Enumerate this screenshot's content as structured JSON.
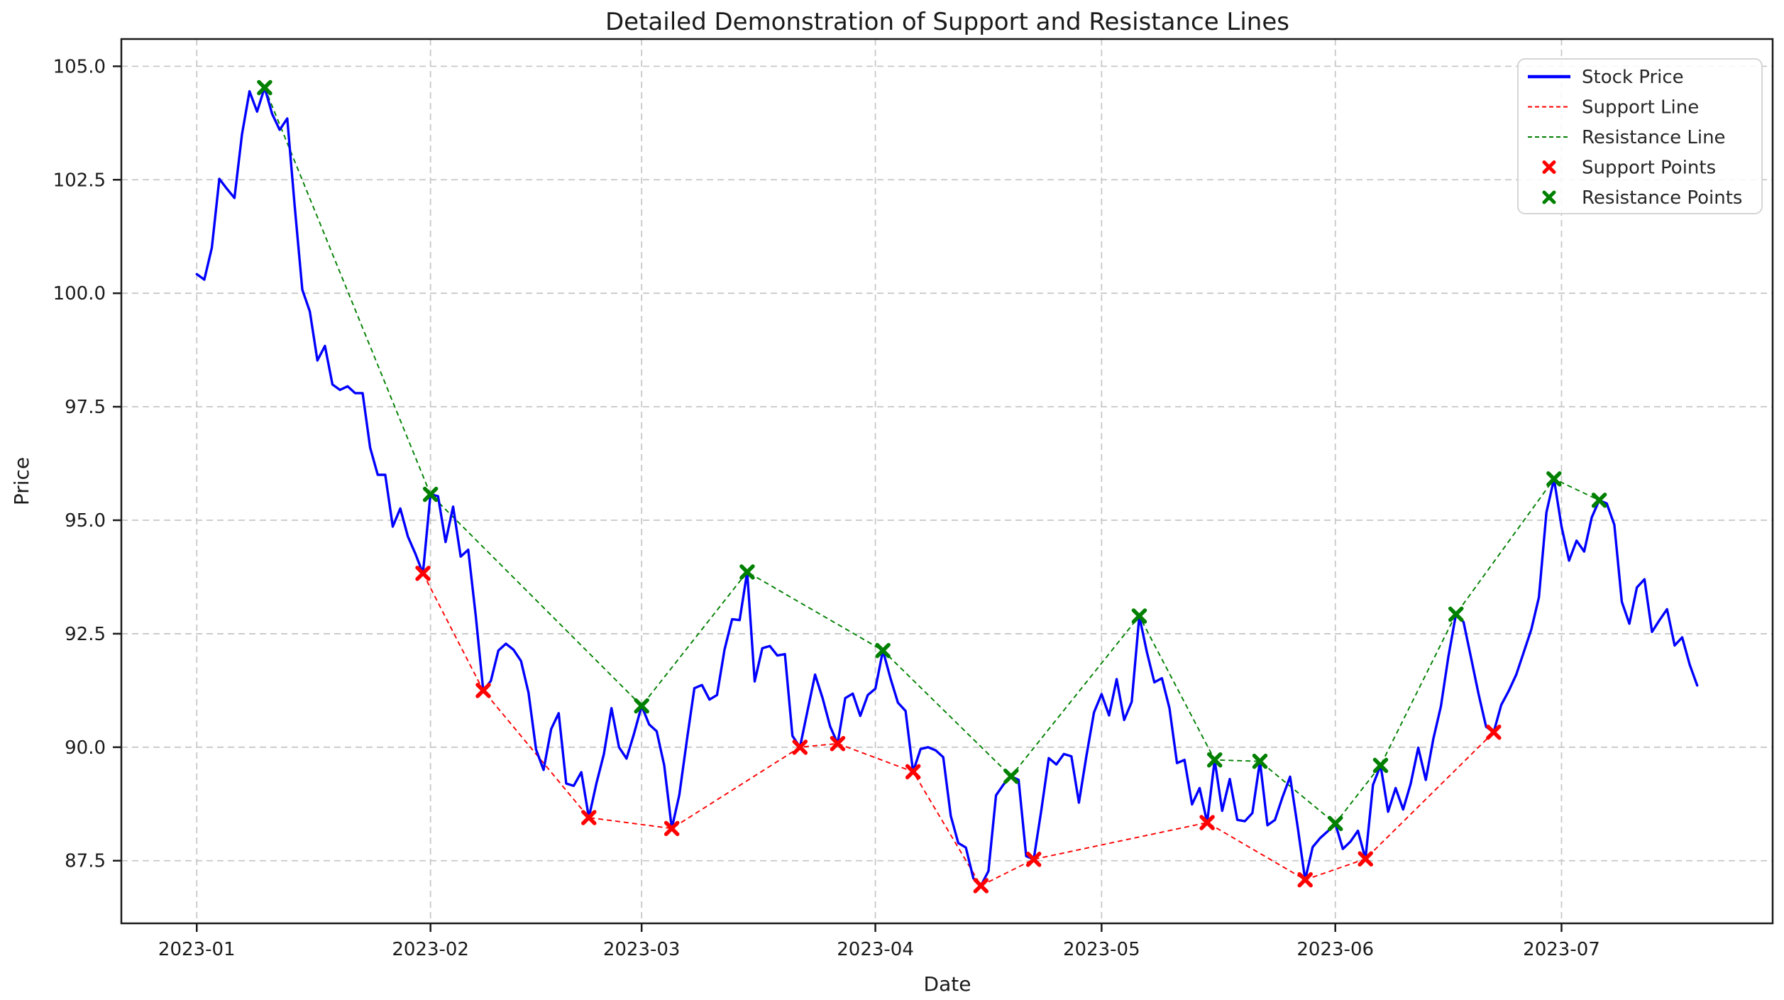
{
  "chart_data": {
    "type": "line",
    "title": "Detailed Demonstration of Support and Resistance Lines",
    "xlabel": "Date",
    "ylabel": "Price",
    "grid": true,
    "xlim": [
      "2022-12-22",
      "2023-07-29"
    ],
    "ylim": [
      86.12,
      105.6
    ],
    "xticks": [
      {
        "date": "2023-01-01",
        "label": "2023-01"
      },
      {
        "date": "2023-02-01",
        "label": "2023-02"
      },
      {
        "date": "2023-03-01",
        "label": "2023-03"
      },
      {
        "date": "2023-04-01",
        "label": "2023-04"
      },
      {
        "date": "2023-05-01",
        "label": "2023-05"
      },
      {
        "date": "2023-06-01",
        "label": "2023-06"
      },
      {
        "date": "2023-07-01",
        "label": "2023-07"
      }
    ],
    "yticks": [
      {
        "value": 87.5,
        "label": "87.5"
      },
      {
        "value": 90.0,
        "label": "90.0"
      },
      {
        "value": 92.5,
        "label": "92.5"
      },
      {
        "value": 95.0,
        "label": "95.0"
      },
      {
        "value": 97.5,
        "label": "97.5"
      },
      {
        "value": 100.0,
        "label": "100.0"
      },
      {
        "value": 102.5,
        "label": "102.5"
      },
      {
        "value": 105.0,
        "label": "105.0"
      }
    ],
    "colors": {
      "stock": "#0000ff",
      "support": "#ff0000",
      "resistance": "#008000",
      "grid": "#c8c8c8",
      "spine": "#1a1a1a",
      "legend_border": "#d5d5d5",
      "legend_bg": "#ffffff"
    },
    "stock_series": {
      "name": "Stock Price",
      "start_date": "2023-01-01",
      "values": [
        100.42,
        100.3,
        101.0,
        102.52,
        102.3,
        102.1,
        103.5,
        104.45,
        104.0,
        104.53,
        103.95,
        103.6,
        103.85,
        101.9,
        100.08,
        99.6,
        98.52,
        98.84,
        97.99,
        97.87,
        97.95,
        97.8,
        97.8,
        96.6,
        96.0,
        96.0,
        94.86,
        95.26,
        94.64,
        94.26,
        93.83,
        95.57,
        95.53,
        94.52,
        95.3,
        94.2,
        94.35,
        92.9,
        91.25,
        91.46,
        92.13,
        92.28,
        92.15,
        91.9,
        91.2,
        89.95,
        89.5,
        90.4,
        90.75,
        89.2,
        89.15,
        89.45,
        88.45,
        89.2,
        89.85,
        90.86,
        90.0,
        89.75,
        90.3,
        90.91,
        90.5,
        90.35,
        89.6,
        88.21,
        88.95,
        90.15,
        91.3,
        91.37,
        91.05,
        91.15,
        92.15,
        92.82,
        92.8,
        93.86,
        91.45,
        92.18,
        92.23,
        92.02,
        92.05,
        90.25,
        90.0,
        90.8,
        91.6,
        91.08,
        90.46,
        90.08,
        91.08,
        91.18,
        90.69,
        91.15,
        91.29,
        92.13,
        91.52,
        90.98,
        90.8,
        89.46,
        89.96,
        90.0,
        89.93,
        89.78,
        88.49,
        87.89,
        87.79,
        87.11,
        86.95,
        87.27,
        88.94,
        89.18,
        89.36,
        89.28,
        87.6,
        87.53,
        88.6,
        89.76,
        89.62,
        89.85,
        89.8,
        88.78,
        89.82,
        90.77,
        91.17,
        90.7,
        91.5,
        90.6,
        91.0,
        92.89,
        92.1,
        91.43,
        91.52,
        90.86,
        89.65,
        89.72,
        88.74,
        89.1,
        88.34,
        89.72,
        88.6,
        89.3,
        88.4,
        88.37,
        88.55,
        89.69,
        88.28,
        88.4,
        88.9,
        89.35,
        88.25,
        87.08,
        87.8,
        88.0,
        88.15,
        88.32,
        87.76,
        87.92,
        88.16,
        87.54,
        89.17,
        89.6,
        88.58,
        89.1,
        88.63,
        89.2,
        89.99,
        89.28,
        90.18,
        90.9,
        92.0,
        92.93,
        92.76,
        91.97,
        91.17,
        90.45,
        90.33,
        90.93,
        91.24,
        91.6,
        92.1,
        92.6,
        93.3,
        95.17,
        95.91,
        94.86,
        94.11,
        94.55,
        94.31,
        95.06,
        95.44,
        95.37,
        94.9,
        93.2,
        92.72,
        93.52,
        93.7,
        92.54,
        92.8,
        93.04,
        92.24,
        92.42,
        91.82,
        91.36
      ]
    },
    "support_points": [
      {
        "date": "2023-01-31",
        "value": 93.83
      },
      {
        "date": "2023-02-08",
        "value": 91.25
      },
      {
        "date": "2023-02-22",
        "value": 88.45
      },
      {
        "date": "2023-03-05",
        "value": 88.21
      },
      {
        "date": "2023-03-22",
        "value": 90.0
      },
      {
        "date": "2023-03-27",
        "value": 90.08
      },
      {
        "date": "2023-04-06",
        "value": 89.46
      },
      {
        "date": "2023-04-15",
        "value": 86.95
      },
      {
        "date": "2023-04-22",
        "value": 87.53
      },
      {
        "date": "2023-05-15",
        "value": 88.34
      },
      {
        "date": "2023-05-28",
        "value": 87.08
      },
      {
        "date": "2023-06-05",
        "value": 87.54
      },
      {
        "date": "2023-06-22",
        "value": 90.33
      }
    ],
    "resistance_points": [
      {
        "date": "2023-01-10",
        "value": 104.53
      },
      {
        "date": "2023-02-01",
        "value": 95.57
      },
      {
        "date": "2023-03-01",
        "value": 90.91
      },
      {
        "date": "2023-03-15",
        "value": 93.86
      },
      {
        "date": "2023-04-02",
        "value": 92.13
      },
      {
        "date": "2023-04-19",
        "value": 89.36
      },
      {
        "date": "2023-05-06",
        "value": 92.89
      },
      {
        "date": "2023-05-16",
        "value": 89.72
      },
      {
        "date": "2023-05-22",
        "value": 89.69
      },
      {
        "date": "2023-06-01",
        "value": 88.32
      },
      {
        "date": "2023-06-07",
        "value": 89.6
      },
      {
        "date": "2023-06-17",
        "value": 92.93
      },
      {
        "date": "2023-06-30",
        "value": 95.91
      },
      {
        "date": "2023-07-06",
        "value": 95.44
      }
    ],
    "legend": {
      "position": "upper right",
      "entries": [
        {
          "label": "Stock Price",
          "color": "#0000ff",
          "sample": "line"
        },
        {
          "label": "Support Line",
          "color": "#ff0000",
          "sample": "dashed"
        },
        {
          "label": "Resistance Line",
          "color": "#008000",
          "sample": "dashed"
        },
        {
          "label": "Support Points",
          "color": "#ff0000",
          "sample": "x-marker"
        },
        {
          "label": "Resistance Points",
          "color": "#008000",
          "sample": "x-marker"
        }
      ]
    }
  }
}
